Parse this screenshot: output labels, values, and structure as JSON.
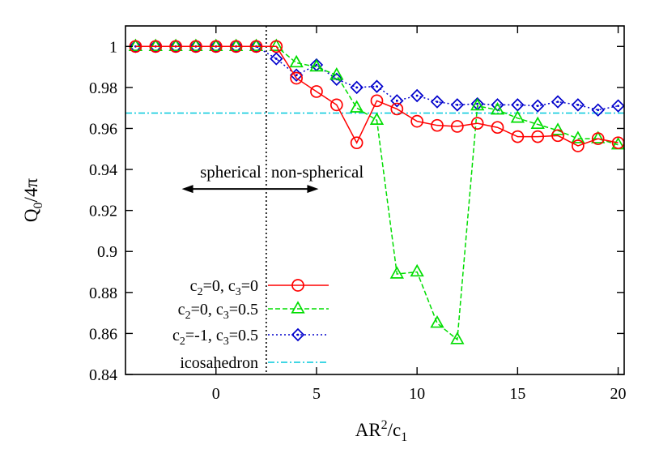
{
  "chart_data": {
    "type": "line",
    "xlabel": {
      "base": "AR",
      "sup": "2",
      "mid": "/c",
      "sub": "1"
    },
    "ylabel": {
      "base": "Q",
      "sub": "0",
      "rest": "/4π"
    },
    "xlim": [
      -4.5,
      20.3
    ],
    "ylim": [
      0.84,
      1.01
    ],
    "xticks": [
      0,
      5,
      10,
      15,
      20
    ],
    "xtick_labels": [
      "0",
      "5",
      "10",
      "15",
      "20"
    ],
    "yticks": [
      0.84,
      0.86,
      0.88,
      0.9,
      0.92,
      0.94,
      0.96,
      0.98,
      1.0
    ],
    "ytick_labels": [
      "0.84",
      "0.86",
      "0.88",
      "0.9",
      "0.92",
      "0.94",
      "0.96",
      "0.98",
      "1"
    ],
    "grid": false,
    "legend_position": "bottom-left",
    "series": [
      {
        "name": {
          "base": "c",
          "sub1": "2",
          "mid": "=0, c",
          "sub2": "3",
          "tail": "=0"
        },
        "color": "#ff0000",
        "marker": "circle",
        "line_style": "solid",
        "x": [
          -4,
          -3,
          -2,
          -1,
          0,
          1,
          2,
          3,
          4,
          5,
          6,
          7,
          8,
          9,
          10,
          11,
          12,
          13,
          14,
          15,
          16,
          17,
          18,
          19,
          20
        ],
        "y": [
          1.0,
          1.0,
          1.0,
          1.0,
          1.0,
          1.0,
          1.0,
          1.0,
          0.9845,
          0.978,
          0.9715,
          0.953,
          0.9735,
          0.9695,
          0.9635,
          0.9615,
          0.961,
          0.9625,
          0.9605,
          0.956,
          0.956,
          0.9565,
          0.9515,
          0.955,
          0.953
        ]
      },
      {
        "name": {
          "base": "c",
          "sub1": "2",
          "mid": "=0, c",
          "sub2": "3",
          "tail": "=0.5"
        },
        "color": "#00dd00",
        "marker": "triangle",
        "line_style": "dashed",
        "x": [
          -4,
          -3,
          -2,
          -1,
          0,
          1,
          2,
          3,
          4,
          5,
          6,
          7,
          8,
          9,
          10,
          11,
          12,
          13,
          14,
          15,
          16,
          17,
          18,
          19,
          20
        ],
        "y": [
          1.0,
          1.0,
          1.0,
          1.0,
          1.0,
          1.0,
          1.0,
          1.0,
          0.992,
          0.99,
          0.986,
          0.97,
          0.964,
          0.889,
          0.89,
          0.865,
          0.857,
          0.971,
          0.969,
          0.965,
          0.962,
          0.959,
          0.955,
          0.955,
          0.952
        ]
      },
      {
        "name": {
          "base": "c",
          "sub1": "2",
          "mid": "=-1, c",
          "sub2": "3",
          "tail": "=0.5"
        },
        "color": "#0000cc",
        "marker": "diamond",
        "line_style": "dotted",
        "x": [
          -4,
          -3,
          -2,
          -1,
          0,
          1,
          2,
          3,
          4,
          5,
          6,
          7,
          8,
          9,
          10,
          11,
          12,
          13,
          14,
          15,
          16,
          17,
          18,
          19,
          20
        ],
        "y": [
          1.0,
          1.0,
          1.0,
          1.0,
          1.0,
          1.0,
          1.0,
          0.994,
          0.986,
          0.991,
          0.984,
          0.98,
          0.9805,
          0.9735,
          0.976,
          0.973,
          0.9715,
          0.972,
          0.9715,
          0.9715,
          0.971,
          0.973,
          0.9715,
          0.969,
          0.971
        ]
      }
    ],
    "reference_line": {
      "name": "icosahedron",
      "y": 0.9675,
      "color": "#00c8dc",
      "line_style": "dash-dot"
    },
    "divider": {
      "x": 2.5,
      "line_style": "dotted",
      "color": "#000000"
    },
    "annotations": {
      "left_text": "spherical",
      "right_text": "non-spherical",
      "arrow_y": 0.9305,
      "arrow_left_x": -1.7,
      "arrow_right_x": 5.1
    }
  }
}
